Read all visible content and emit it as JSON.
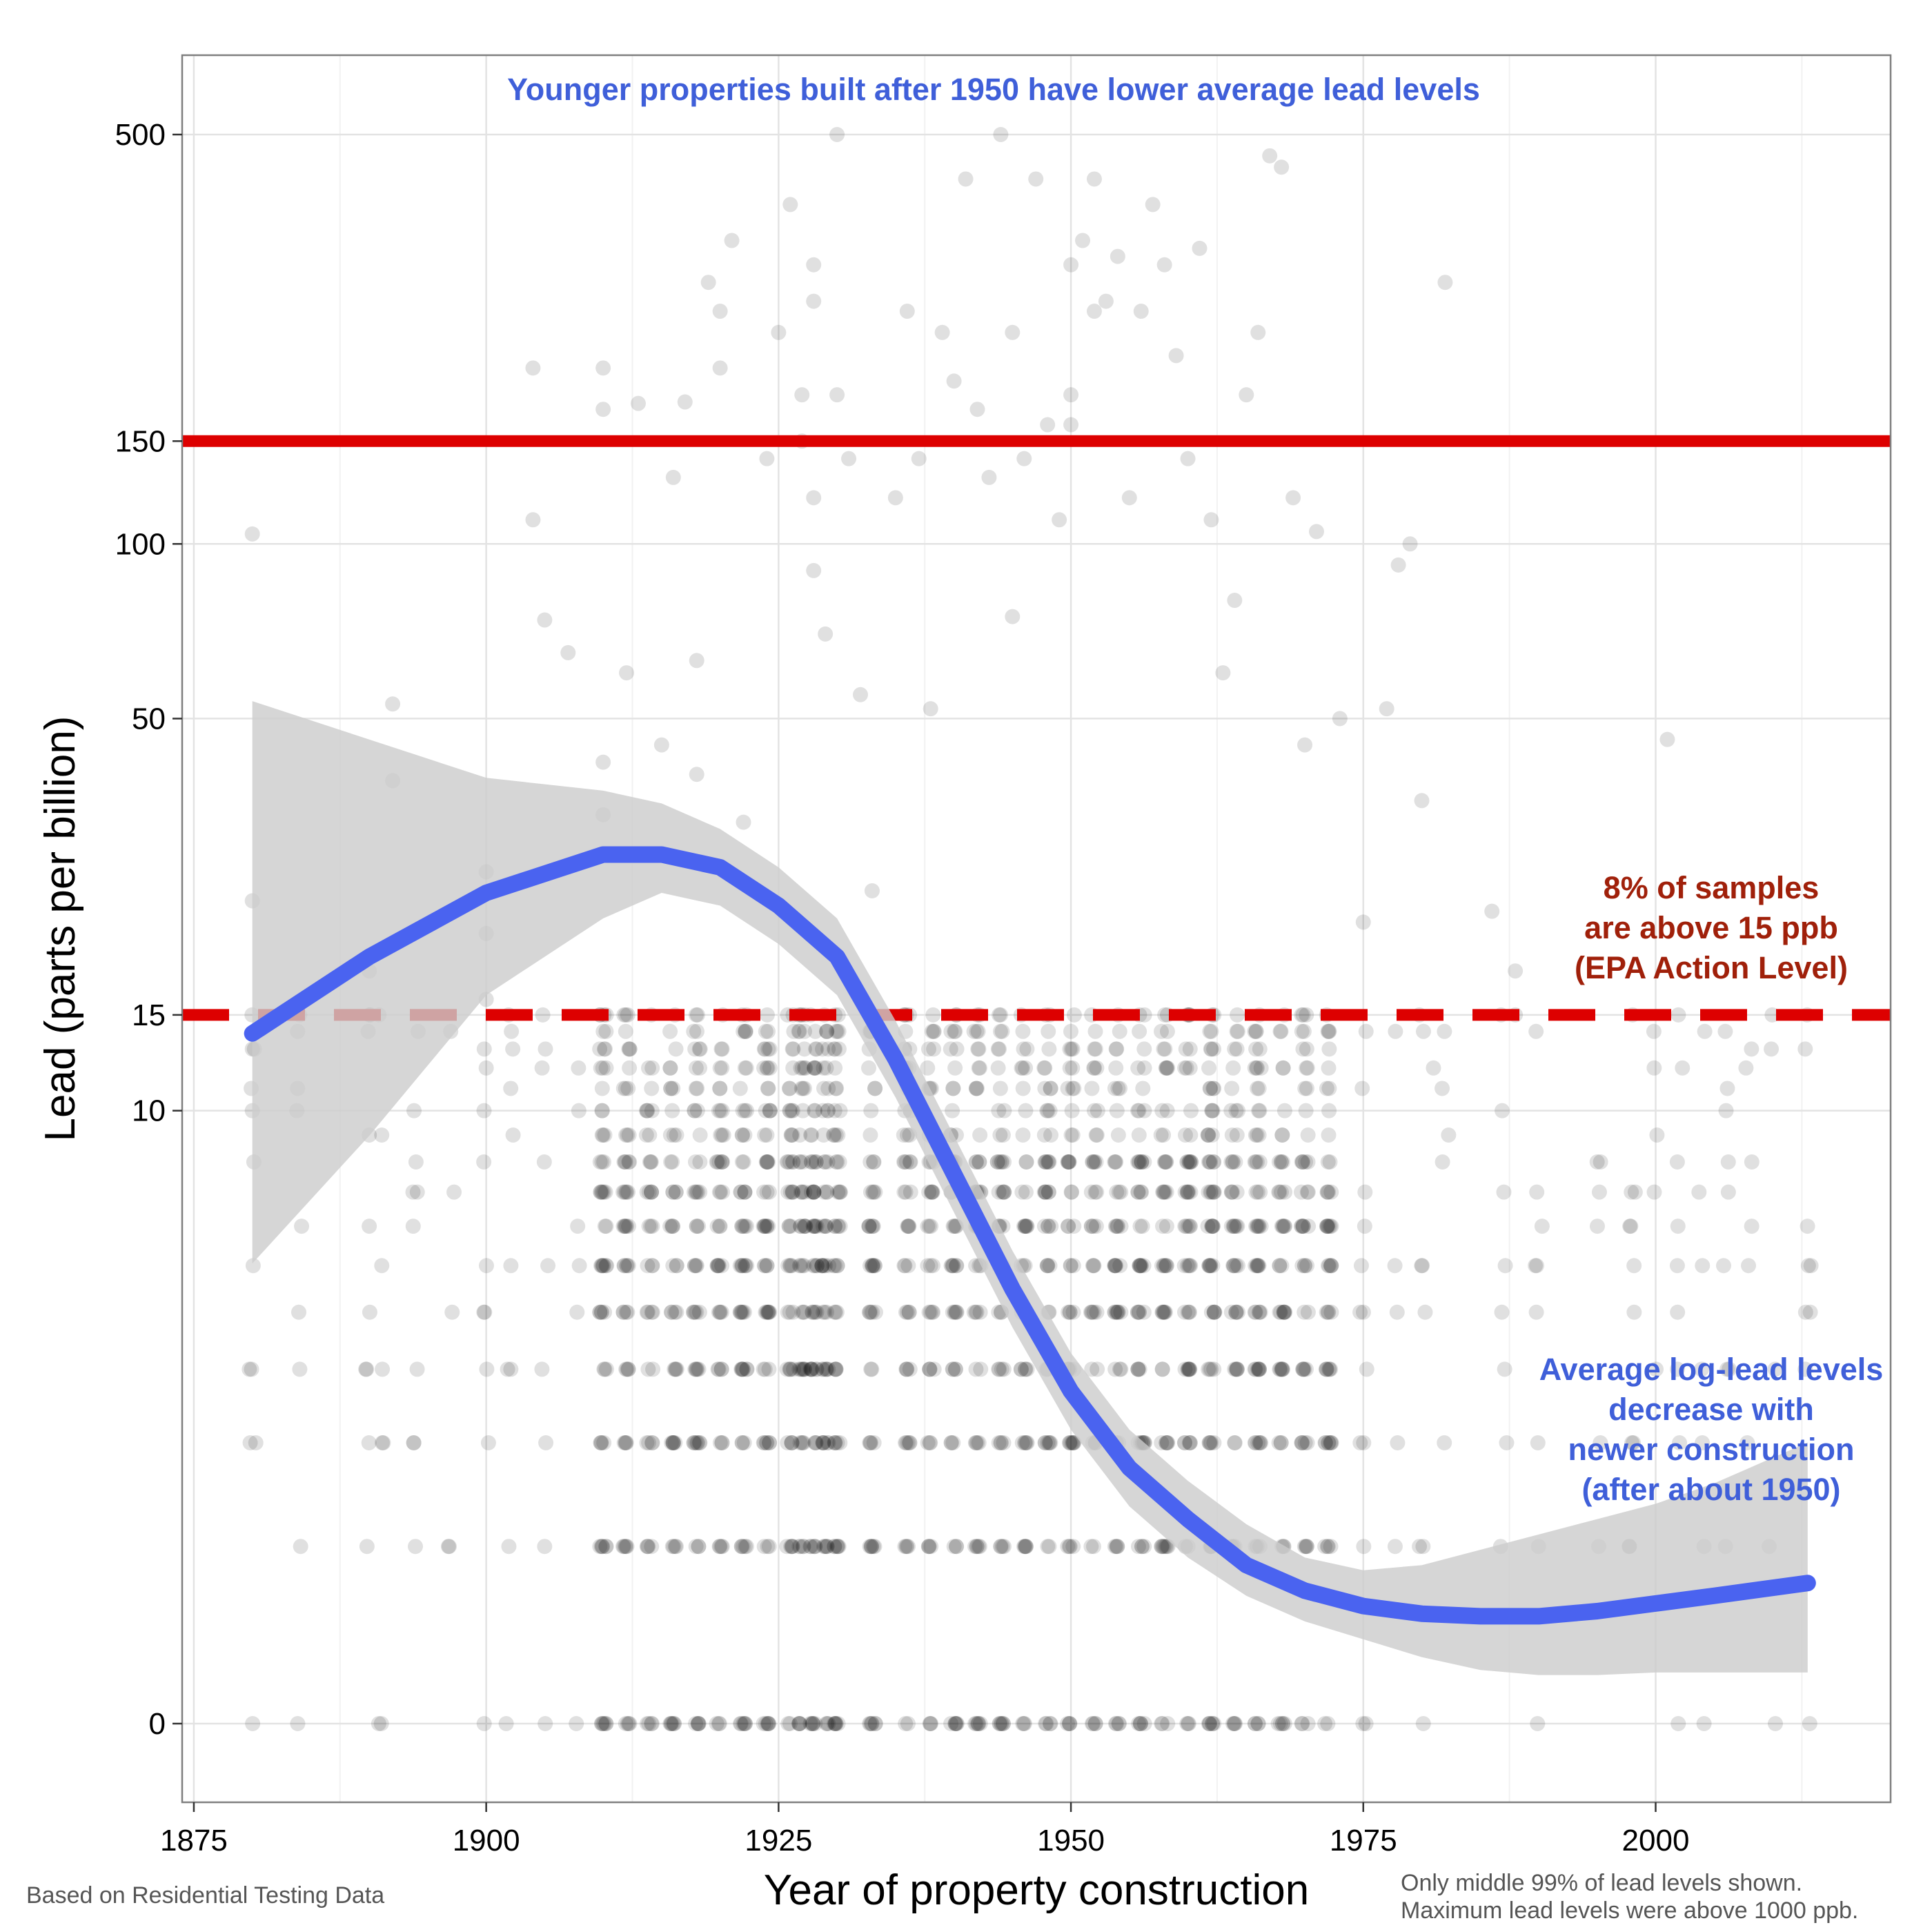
{
  "chart_data": {
    "type": "scatter",
    "title": "",
    "xlabel": "Year of property construction",
    "ylabel": "Lead (parts per billion)",
    "x_ticks": [
      1875,
      1900,
      1925,
      1950,
      1975,
      2000
    ],
    "y_ticks": [
      {
        "value": 0,
        "label": "0"
      },
      {
        "value": 10,
        "label": "10"
      },
      {
        "value": 15,
        "label": "15"
      },
      {
        "value": 50,
        "label": "50"
      },
      {
        "value": 100,
        "label": "100"
      },
      {
        "value": 150,
        "label": "150"
      },
      {
        "value": 500,
        "label": "500"
      }
    ],
    "y_scale": "log(1+y)",
    "xlim": [
      1874,
      2020
    ],
    "ylim": [
      0,
      750
    ],
    "grid": true,
    "reference_lines": [
      {
        "value": 150,
        "style": "solid",
        "color": "#dd0000"
      },
      {
        "value": 15,
        "style": "dashed",
        "color": "#dd0000"
      }
    ],
    "smooth_trend": {
      "color": "#4a63f0",
      "band_color": "#cccccc",
      "x": [
        1880,
        1890,
        1900,
        1910,
        1915,
        1920,
        1925,
        1930,
        1935,
        1940,
        1945,
        1950,
        1955,
        1960,
        1965,
        1970,
        1975,
        1980,
        1985,
        1990,
        1995,
        2000,
        2005,
        2013
      ],
      "y": [
        2.7,
        3.0,
        3.25,
        3.4,
        3.4,
        3.35,
        3.2,
        3.0,
        2.6,
        2.15,
        1.7,
        1.3,
        1.0,
        0.8,
        0.62,
        0.52,
        0.46,
        0.43,
        0.42,
        0.42,
        0.44,
        0.47,
        0.5,
        0.55
      ],
      "lower": [
        1.8,
        2.3,
        2.85,
        3.15,
        3.25,
        3.2,
        3.05,
        2.85,
        2.45,
        2.0,
        1.55,
        1.15,
        0.85,
        0.65,
        0.5,
        0.4,
        0.33,
        0.26,
        0.21,
        0.19,
        0.19,
        0.2,
        0.2,
        0.2
      ],
      "upper": [
        4.0,
        3.85,
        3.7,
        3.65,
        3.6,
        3.5,
        3.35,
        3.15,
        2.75,
        2.3,
        1.85,
        1.45,
        1.15,
        0.95,
        0.78,
        0.65,
        0.6,
        0.62,
        0.68,
        0.74,
        0.8,
        0.86,
        0.94,
        1.1
      ]
    },
    "point_style": {
      "color": "#000000",
      "opacity": 0.12
    },
    "levels": [
      0,
      1,
      2,
      3,
      4,
      5,
      6,
      7,
      8,
      9,
      10,
      11,
      12,
      13,
      14,
      15
    ],
    "level_x": [
      1880,
      1884,
      1890,
      1891,
      1894,
      1897,
      1900,
      1902,
      1905,
      1908,
      1910,
      1912,
      1914,
      1916,
      1918,
      1920,
      1922,
      1924,
      1926,
      1927,
      1928,
      1929,
      1930,
      1933,
      1936,
      1938,
      1940,
      1942,
      1944,
      1946,
      1948,
      1950,
      1952,
      1954,
      1956,
      1958,
      1960,
      1962,
      1964,
      1966,
      1968,
      1970,
      1972,
      1975,
      1978,
      1980,
      1982,
      1987,
      1990,
      1995,
      1998,
      2000,
      2002,
      2004,
      2006,
      2008,
      2010,
      2013
    ],
    "scatter_points": [
      {
        "x": 1880,
        "y": 104
      },
      {
        "x": 1880,
        "y": 24
      },
      {
        "x": 1880,
        "y": 13
      },
      {
        "x": 1880,
        "y": 10
      },
      {
        "x": 1890,
        "y": 18
      },
      {
        "x": 1890,
        "y": 15
      },
      {
        "x": 1890,
        "y": 9
      },
      {
        "x": 1892,
        "y": 53
      },
      {
        "x": 1892,
        "y": 39
      },
      {
        "x": 1900,
        "y": 27
      },
      {
        "x": 1900,
        "y": 21
      },
      {
        "x": 1900,
        "y": 16
      },
      {
        "x": 1900,
        "y": 12
      },
      {
        "x": 1904,
        "y": 200
      },
      {
        "x": 1904,
        "y": 110
      },
      {
        "x": 1905,
        "y": 74
      },
      {
        "x": 1907,
        "y": 65
      },
      {
        "x": 1910,
        "y": 170
      },
      {
        "x": 1910,
        "y": 200
      },
      {
        "x": 1910,
        "y": 42
      },
      {
        "x": 1910,
        "y": 34
      },
      {
        "x": 1912,
        "y": 60
      },
      {
        "x": 1913,
        "y": 174
      },
      {
        "x": 1915,
        "y": 45
      },
      {
        "x": 1916,
        "y": 130
      },
      {
        "x": 1917,
        "y": 175
      },
      {
        "x": 1918,
        "y": 40
      },
      {
        "x": 1918,
        "y": 63
      },
      {
        "x": 1919,
        "y": 280
      },
      {
        "x": 1920,
        "y": 250
      },
      {
        "x": 1920,
        "y": 200
      },
      {
        "x": 1921,
        "y": 330
      },
      {
        "x": 1922,
        "y": 33
      },
      {
        "x": 1924,
        "y": 140
      },
      {
        "x": 1925,
        "y": 230
      },
      {
        "x": 1926,
        "y": 380
      },
      {
        "x": 1927,
        "y": 180
      },
      {
        "x": 1927,
        "y": 150
      },
      {
        "x": 1928,
        "y": 300
      },
      {
        "x": 1928,
        "y": 260
      },
      {
        "x": 1928,
        "y": 120
      },
      {
        "x": 1928,
        "y": 90
      },
      {
        "x": 1929,
        "y": 70
      },
      {
        "x": 1930,
        "y": 500
      },
      {
        "x": 1930,
        "y": 180
      },
      {
        "x": 1931,
        "y": 140
      },
      {
        "x": 1932,
        "y": 55
      },
      {
        "x": 1933,
        "y": 25
      },
      {
        "x": 1935,
        "y": 120
      },
      {
        "x": 1936,
        "y": 250
      },
      {
        "x": 1937,
        "y": 140
      },
      {
        "x": 1938,
        "y": 52
      },
      {
        "x": 1939,
        "y": 230
      },
      {
        "x": 1940,
        "y": 190
      },
      {
        "x": 1941,
        "y": 420
      },
      {
        "x": 1942,
        "y": 170
      },
      {
        "x": 1943,
        "y": 130
      },
      {
        "x": 1944,
        "y": 500
      },
      {
        "x": 1945,
        "y": 75
      },
      {
        "x": 1945,
        "y": 230
      },
      {
        "x": 1946,
        "y": 140
      },
      {
        "x": 1947,
        "y": 420
      },
      {
        "x": 1948,
        "y": 160
      },
      {
        "x": 1949,
        "y": 110
      },
      {
        "x": 1950,
        "y": 300
      },
      {
        "x": 1950,
        "y": 180
      },
      {
        "x": 1950,
        "y": 160
      },
      {
        "x": 1951,
        "y": 330
      },
      {
        "x": 1952,
        "y": 250
      },
      {
        "x": 1952,
        "y": 420
      },
      {
        "x": 1953,
        "y": 260
      },
      {
        "x": 1954,
        "y": 310
      },
      {
        "x": 1955,
        "y": 120
      },
      {
        "x": 1956,
        "y": 250
      },
      {
        "x": 1957,
        "y": 380
      },
      {
        "x": 1958,
        "y": 300
      },
      {
        "x": 1959,
        "y": 210
      },
      {
        "x": 1960,
        "y": 140
      },
      {
        "x": 1961,
        "y": 320
      },
      {
        "x": 1962,
        "y": 110
      },
      {
        "x": 1963,
        "y": 60
      },
      {
        "x": 1964,
        "y": 80
      },
      {
        "x": 1965,
        "y": 180
      },
      {
        "x": 1966,
        "y": 230
      },
      {
        "x": 1967,
        "y": 460
      },
      {
        "x": 1968,
        "y": 440
      },
      {
        "x": 1969,
        "y": 120
      },
      {
        "x": 1970,
        "y": 45
      },
      {
        "x": 1971,
        "y": 105
      },
      {
        "x": 1973,
        "y": 50
      },
      {
        "x": 1975,
        "y": 22
      },
      {
        "x": 1977,
        "y": 52
      },
      {
        "x": 1978,
        "y": 92
      },
      {
        "x": 1979,
        "y": 100
      },
      {
        "x": 1980,
        "y": 36
      },
      {
        "x": 1981,
        "y": 12
      },
      {
        "x": 1982,
        "y": 280
      },
      {
        "x": 1986,
        "y": 23
      },
      {
        "x": 1988,
        "y": 15
      },
      {
        "x": 1988,
        "y": 18
      },
      {
        "x": 2001,
        "y": 46
      }
    ]
  },
  "annotations": {
    "top": "Younger properties built after 1950 have lower average lead levels",
    "epa_line1": "8% of samples",
    "epa_line2": "are above 15 ppb",
    "epa_line3": "(EPA Action Level)",
    "trend_line1": "Average log-lead levels",
    "trend_line2": "decrease with",
    "trend_line3": "newer construction",
    "trend_line4": "(after about 1950)"
  },
  "notes": {
    "source": "Based on Residential Testing Data",
    "caption_line1": "Only middle 99% of lead levels shown.",
    "caption_line2": "Maximum lead levels were above 1000 ppb."
  }
}
